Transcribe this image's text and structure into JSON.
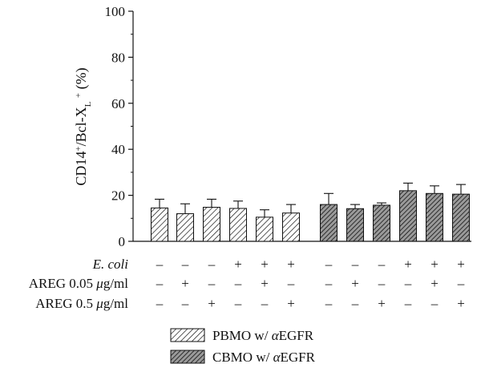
{
  "chart_data": {
    "type": "bar",
    "ylabel_parts": [
      "CD14",
      "+",
      "/Bcl-X",
      "L",
      " ",
      "+",
      " (%)"
    ],
    "ylim": [
      0,
      100
    ],
    "yticks": [
      "0",
      "20",
      "40",
      "60",
      "80",
      "100"
    ],
    "grid": false,
    "legend_position": "bottom",
    "series": [
      {
        "name": "PBMO w/ αEGFR",
        "pattern": "light-hatch",
        "values": [
          14.5,
          12.0,
          14.8,
          14.3,
          10.5,
          12.3
        ],
        "errors": [
          3.8,
          4.3,
          3.5,
          3.2,
          3.2,
          3.7
        ]
      },
      {
        "name": "CBMO w/ αEGFR",
        "pattern": "dark-hatch",
        "values": [
          16.0,
          14.2,
          15.7,
          22.0,
          20.8,
          20.5
        ],
        "errors": [
          4.8,
          1.8,
          1.0,
          3.3,
          3.3,
          4.2
        ]
      }
    ],
    "conditions": [
      {
        "label_text": "E. coli",
        "italic": true,
        "marks": [
          "–",
          "–",
          "–",
          "+",
          "+",
          "+"
        ]
      },
      {
        "label_prefix": "AREG 0.05 ",
        "label_unit_mu": "μ",
        "label_suffix": "g/ml",
        "marks": [
          "–",
          "+",
          "–",
          "–",
          "+",
          "–"
        ]
      },
      {
        "label_prefix": "AREG 0.5 ",
        "label_unit_mu": "μ",
        "label_suffix": "g/ml",
        "marks": [
          "–",
          "–",
          "+",
          "–",
          "–",
          "+"
        ]
      }
    ],
    "legend": [
      {
        "prefix": "PBMO w/ ",
        "greek": "α",
        "suffix": "EGFR"
      },
      {
        "prefix": "CBMO w/ ",
        "greek": "α",
        "suffix": "EGFR"
      }
    ]
  },
  "colors": {
    "light_fill": "#ffffff",
    "dark_fill": "#9a9a9a",
    "hatch": "#111111",
    "axis": "#111111"
  }
}
